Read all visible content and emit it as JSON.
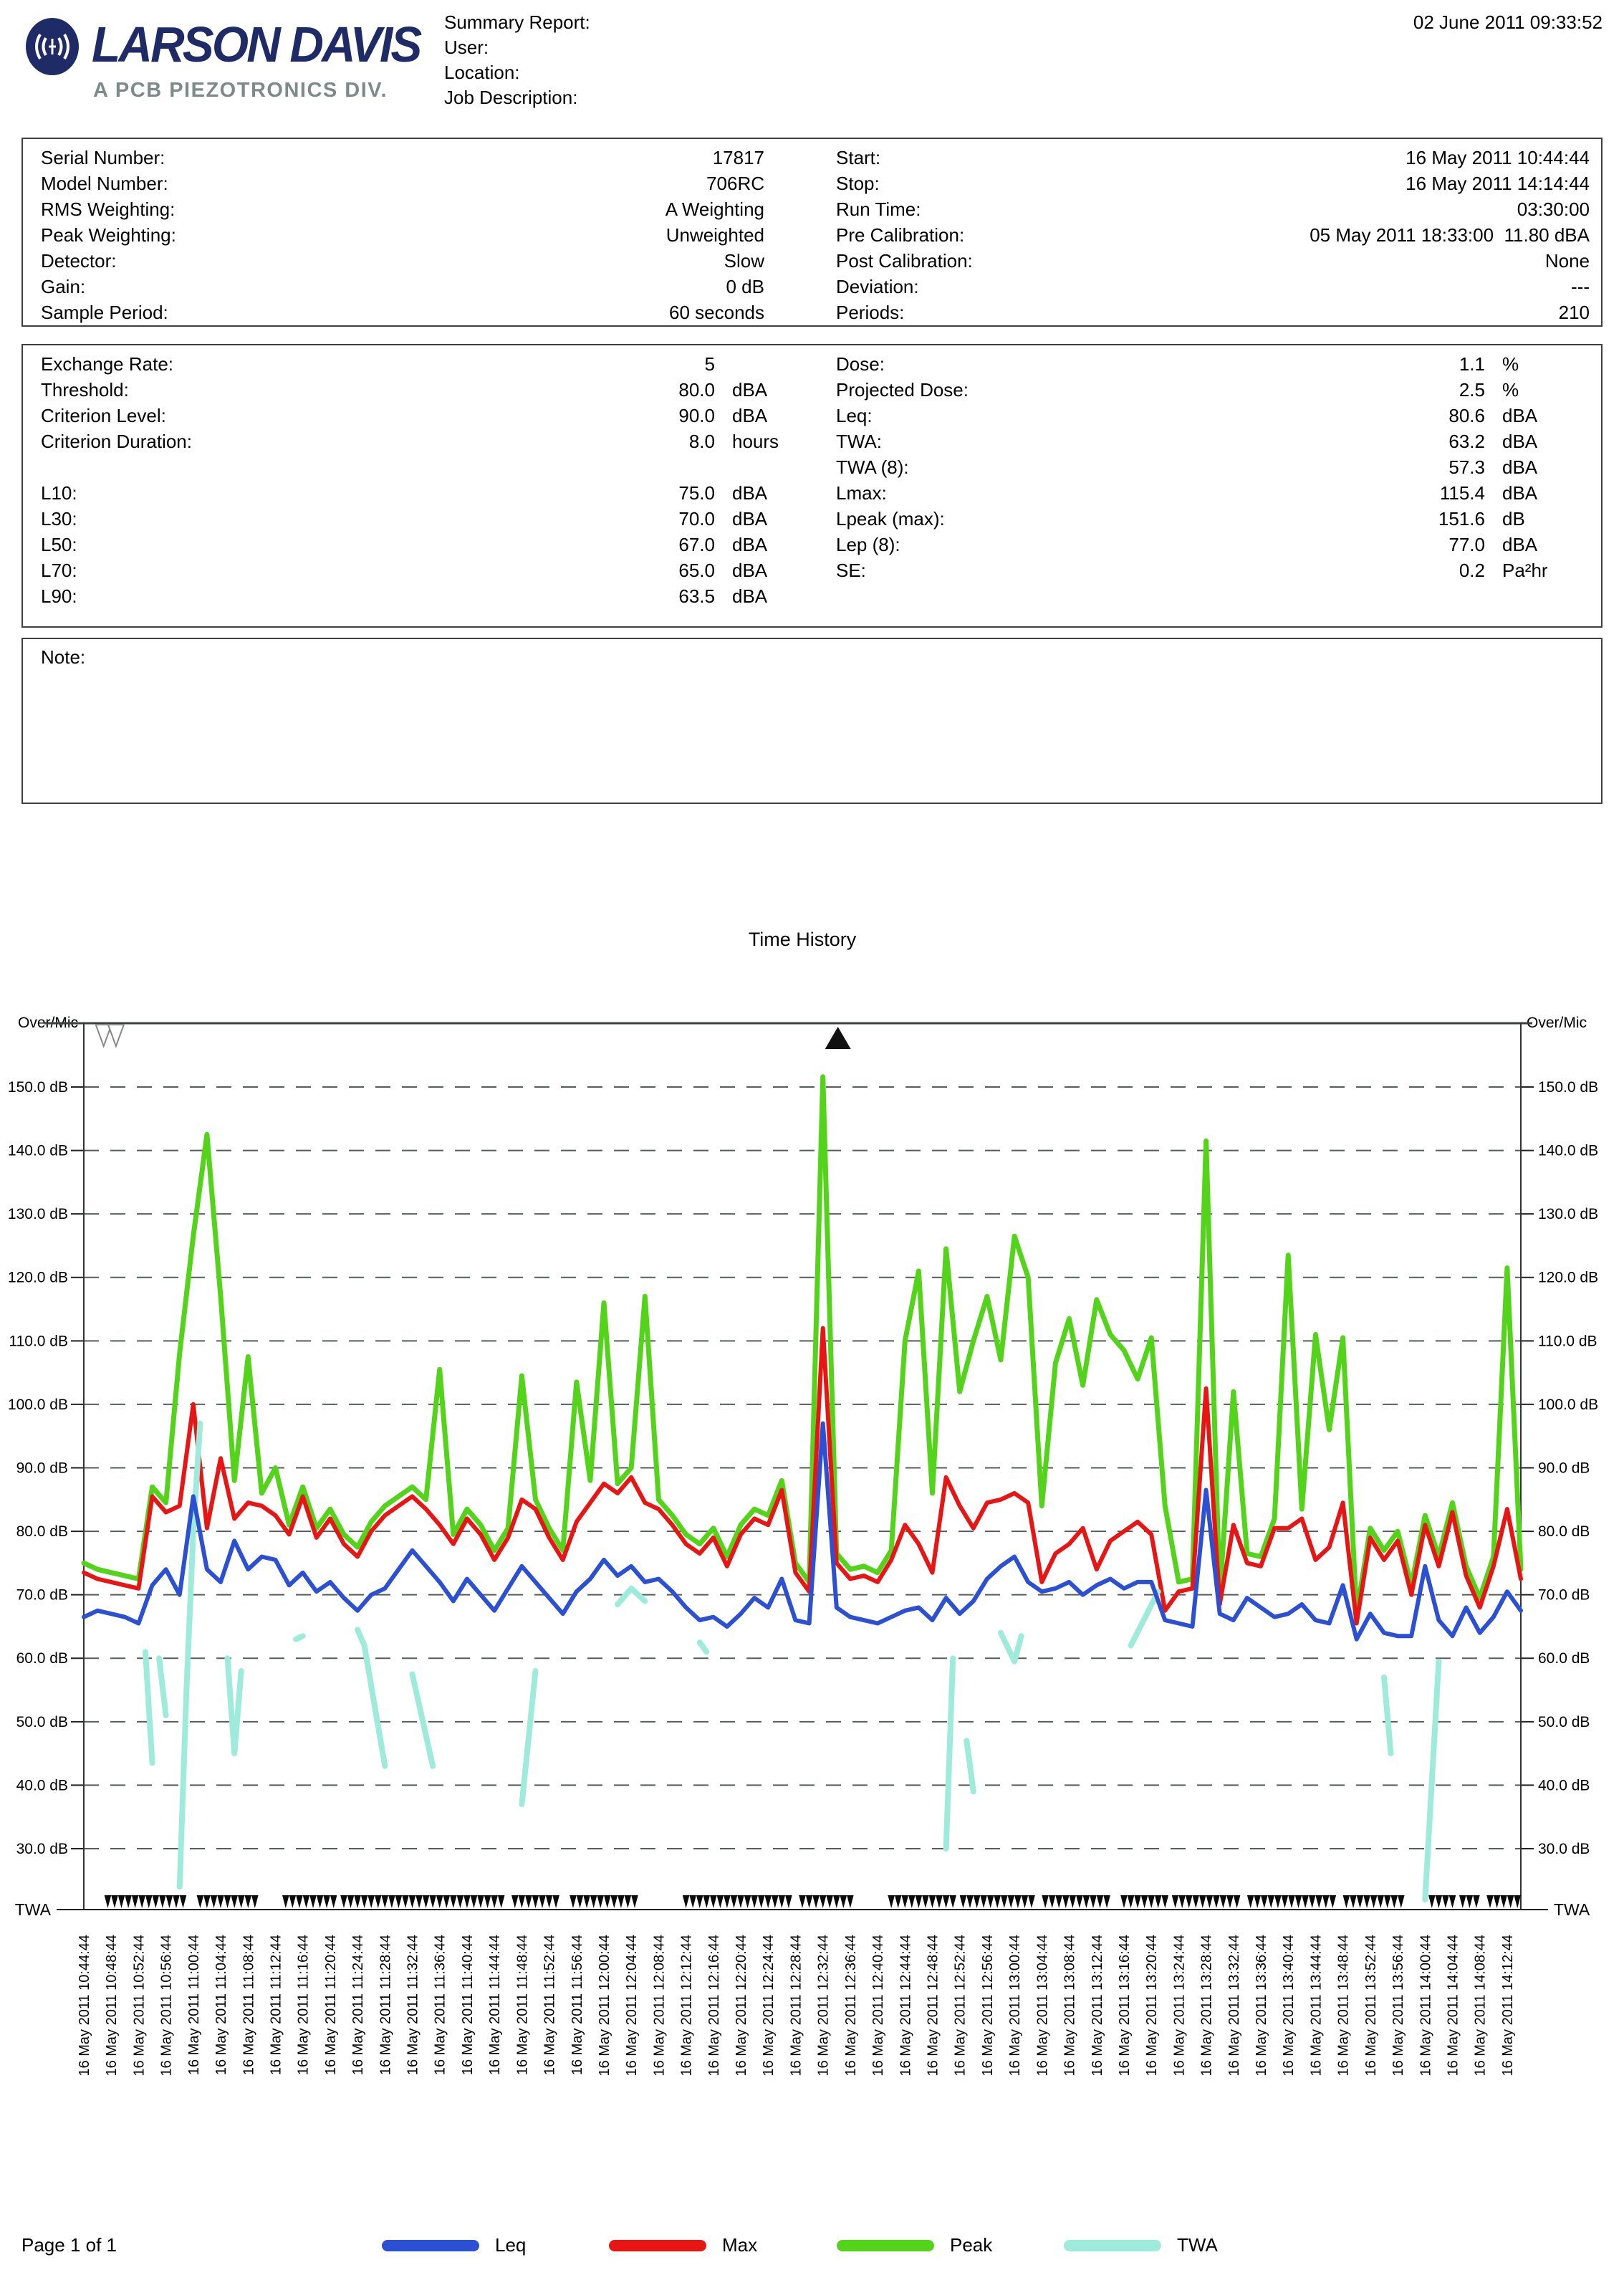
{
  "header": {
    "logo": {
      "name": "LARSON DAVIS",
      "tagline": "A PCB PIEZOTRONICS DIV."
    },
    "fields": {
      "summary": "Summary Report:",
      "user": "User:",
      "location": "Location:",
      "job": "Job Description:"
    },
    "datetime": "02 June 2011 09:33:52"
  },
  "info_table": {
    "left": [
      {
        "label": "Serial Number:",
        "value": "17817"
      },
      {
        "label": "Model Number:",
        "value": "706RC"
      },
      {
        "label": "RMS Weighting:",
        "value": "A Weighting"
      },
      {
        "label": "Peak Weighting:",
        "value": "Unweighted"
      },
      {
        "label": "Detector:",
        "value": "Slow"
      },
      {
        "label": "Gain:",
        "value": "0 dB"
      },
      {
        "label": "Sample Period:",
        "value": "60 seconds"
      }
    ],
    "right": [
      {
        "label": "Start:",
        "value": "16 May 2011 10:44:44"
      },
      {
        "label": "Stop:",
        "value": "16 May 2011 14:14:44"
      },
      {
        "label": "Run Time:",
        "value": "03:30:00"
      },
      {
        "label": "Pre Calibration:",
        "value": "05 May 2011 18:33:00  11.80 dBA"
      },
      {
        "label": "Post Calibration:",
        "value": "None"
      },
      {
        "label": "Deviation:",
        "value": "---"
      },
      {
        "label": "Periods:",
        "value": "210"
      }
    ]
  },
  "metrics_table": {
    "left": [
      {
        "label": "Exchange Rate:",
        "value": "5",
        "unit": ""
      },
      {
        "label": "Threshold:",
        "value": "80.0",
        "unit": "dBA"
      },
      {
        "label": "Criterion Level:",
        "value": "90.0",
        "unit": "dBA"
      },
      {
        "label": "Criterion Duration:",
        "value": "8.0",
        "unit": "hours"
      },
      {
        "label": "",
        "value": "",
        "unit": ""
      },
      {
        "label": "L10:",
        "value": "75.0",
        "unit": "dBA"
      },
      {
        "label": "L30:",
        "value": "70.0",
        "unit": "dBA"
      },
      {
        "label": "L50:",
        "value": "67.0",
        "unit": "dBA"
      },
      {
        "label": "L70:",
        "value": "65.0",
        "unit": "dBA"
      },
      {
        "label": "L90:",
        "value": "63.5",
        "unit": "dBA"
      }
    ],
    "right": [
      {
        "label": "Dose:",
        "value": "1.1",
        "unit": "%"
      },
      {
        "label": "Projected Dose:",
        "value": "2.5",
        "unit": "%"
      },
      {
        "label": "Leq:",
        "value": "80.6",
        "unit": "dBA"
      },
      {
        "label": "TWA:",
        "value": "63.2",
        "unit": "dBA"
      },
      {
        "label": "TWA (8):",
        "value": "57.3",
        "unit": "dBA"
      },
      {
        "label": "Lmax:",
        "value": "115.4",
        "unit": "dBA"
      },
      {
        "label": "Lpeak (max):",
        "value": "151.6",
        "unit": "dB"
      },
      {
        "label": "Lep (8):",
        "value": "77.0",
        "unit": "dBA"
      },
      {
        "label": "SE:",
        "value": "0.2",
        "unit": "Pa²hr"
      }
    ]
  },
  "note": {
    "label": "Note:"
  },
  "chart_data": {
    "type": "line",
    "title": "Time History",
    "overmic_label": "Over/Mic",
    "twa_axis_label": "TWA",
    "grid": true,
    "ylim_db": [
      30,
      150
    ],
    "y_tick_labels": [
      "150.0 dB",
      "140.0 dB",
      "130.0 dB",
      "120.0 dB",
      "110.0 dB",
      "100.0 dB",
      "90.0 dB",
      "80.0 dB",
      "70.0 dB",
      "60.0 dB",
      "50.0 dB",
      "40.0 dB",
      "30.0 dB"
    ],
    "x_minutes_total": 210,
    "sample_step_minutes": 2,
    "x_labels": [
      "16 May 2011 10:44:44",
      "16 May 2011 10:48:44",
      "16 May 2011 10:52:44",
      "16 May 2011 10:56:44",
      "16 May 2011 11:00:44",
      "16 May 2011 11:04:44",
      "16 May 2011 11:08:44",
      "16 May 2011 11:12:44",
      "16 May 2011 11:16:44",
      "16 May 2011 11:20:44",
      "16 May 2011 11:24:44",
      "16 May 2011 11:28:44",
      "16 May 2011 11:32:44",
      "16 May 2011 11:36:44",
      "16 May 2011 11:40:44",
      "16 May 2011 11:44:44",
      "16 May 2011 11:48:44",
      "16 May 2011 11:52:44",
      "16 May 2011 11:56:44",
      "16 May 2011 12:00:44",
      "16 May 2011 12:04:44",
      "16 May 2011 12:08:44",
      "16 May 2011 12:12:44",
      "16 May 2011 12:16:44",
      "16 May 2011 12:20:44",
      "16 May 2011 12:24:44",
      "16 May 2011 12:28:44",
      "16 May 2011 12:32:44",
      "16 May 2011 12:36:44",
      "16 May 2011 12:40:44",
      "16 May 2011 12:44:44",
      "16 May 2011 12:48:44",
      "16 May 2011 12:52:44",
      "16 May 2011 12:56:44",
      "16 May 2011 13:00:44",
      "16 May 2011 13:04:44",
      "16 May 2011 13:08:44",
      "16 May 2011 13:12:44",
      "16 May 2011 13:16:44",
      "16 May 2011 13:20:44",
      "16 May 2011 13:24:44",
      "16 May 2011 13:28:44",
      "16 May 2011 13:32:44",
      "16 May 2011 13:36:44",
      "16 May 2011 13:40:44",
      "16 May 2011 13:44:44",
      "16 May 2011 13:48:44",
      "16 May 2011 13:52:44",
      "16 May 2011 13:56:44",
      "16 May 2011 14:00:44",
      "16 May 2011 14:04:44",
      "16 May 2011 14:08:44",
      "16 May 2011 14:12:44"
    ],
    "series": [
      {
        "name": "Leq",
        "color": "#2c50d4",
        "width": 6,
        "values": [
          66.5,
          67.5,
          67,
          66.5,
          65.5,
          71.5,
          74,
          70,
          85.5,
          74,
          72,
          78.5,
          74,
          76,
          75.5,
          71.5,
          73.5,
          70.5,
          72,
          69.5,
          67.5,
          70,
          71,
          74,
          77,
          74.5,
          72,
          69,
          72.5,
          70,
          67.5,
          71,
          74.5,
          72,
          69.5,
          67,
          70.5,
          72.5,
          75.5,
          73,
          74.5,
          72,
          72.5,
          70.5,
          68,
          66,
          66.5,
          65,
          67,
          69.5,
          68,
          72.5,
          66,
          65.5,
          97,
          68,
          66.5,
          66,
          65.5,
          66.5,
          67.5,
          68,
          66,
          69.5,
          67,
          69,
          72.5,
          74.5,
          76,
          72,
          70.5,
          71,
          72,
          70,
          71.5,
          72.5,
          71,
          72,
          72,
          66,
          65.5,
          65,
          86.5,
          67,
          66,
          69.5,
          68,
          66.5,
          67,
          68.5,
          66,
          65.5,
          71.5,
          63,
          67,
          64,
          63.5,
          63.5,
          74.5,
          66,
          63.5,
          68,
          64,
          66.5,
          70.5,
          67.5
        ]
      },
      {
        "name": "Max",
        "color": "#e81515",
        "width": 6,
        "values": [
          73.5,
          72.5,
          72,
          71.5,
          71,
          85.5,
          83,
          84,
          100,
          80.5,
          91.5,
          82,
          84.5,
          84,
          82.5,
          79.5,
          85.5,
          79,
          82,
          78,
          76,
          80,
          82.5,
          84,
          85.5,
          83.5,
          81,
          78,
          82,
          79.5,
          75.5,
          79,
          85,
          83.5,
          79,
          75.5,
          81.5,
          84.5,
          87.5,
          86,
          88.5,
          84.5,
          83.5,
          81,
          78,
          76.5,
          79,
          74.5,
          79.5,
          82,
          81,
          86.5,
          73.5,
          70.5,
          112,
          75,
          72.5,
          73,
          72,
          75.5,
          81,
          78,
          73.5,
          88.5,
          84,
          80.5,
          84.5,
          85,
          86,
          84.5,
          72,
          76.5,
          78,
          80.5,
          74,
          78.5,
          80,
          81.5,
          79.5,
          67.5,
          70.5,
          71,
          102.5,
          68.5,
          81,
          75,
          74.5,
          80.5,
          80.5,
          82,
          75.5,
          77.5,
          84.5,
          65.5,
          79,
          75.5,
          78.5,
          70,
          81,
          74.5,
          83,
          73,
          68,
          74.5,
          83.5,
          72.5
        ]
      },
      {
        "name": "Peak",
        "color": "#53d31a",
        "width": 7,
        "values": [
          75,
          74,
          73.5,
          73,
          72.5,
          87,
          84.5,
          108,
          126.5,
          142.5,
          117,
          88,
          107.5,
          86,
          90,
          81,
          87,
          80.5,
          83.5,
          79.5,
          77.5,
          81.5,
          84,
          85.5,
          87,
          85,
          105.5,
          79.5,
          83.5,
          81,
          77,
          80.5,
          104.5,
          85,
          80.5,
          77,
          103.5,
          88,
          116,
          87.5,
          90,
          117,
          85,
          82.5,
          79.5,
          78,
          80.5,
          76,
          81,
          83.5,
          82.5,
          88,
          75,
          72,
          151.6,
          76.5,
          74,
          74.5,
          73.5,
          77,
          110,
          121,
          86,
          124.5,
          102,
          110,
          117,
          107,
          126.5,
          120,
          84,
          106.5,
          113.5,
          103,
          116.5,
          111,
          108.5,
          104,
          110.5,
          84,
          72,
          72.5,
          141.5,
          70,
          102,
          76.5,
          76,
          82,
          123.5,
          83.5,
          111,
          96,
          110.5,
          67,
          80.5,
          77,
          80,
          71.5,
          82.5,
          76,
          84.5,
          74.5,
          69.5,
          76,
          121.5,
          74
        ]
      },
      {
        "name": "TWA",
        "color": "#9febdb",
        "width": 8,
        "segments": [
          [
            [
              9,
              61
            ],
            [
              10,
              43.5
            ]
          ],
          [
            [
              11,
              60
            ],
            [
              12,
              51
            ]
          ],
          [
            [
              14,
              24
            ],
            [
              15,
              55
            ],
            [
              16,
              80
            ],
            [
              17,
              97
            ]
          ],
          [
            [
              21,
              60
            ],
            [
              22,
              45
            ],
            [
              23,
              58
            ]
          ],
          [
            [
              31,
              63
            ],
            [
              32,
              63.5
            ]
          ],
          [
            [
              40,
              64.5
            ],
            [
              41,
              62
            ],
            [
              44,
              43
            ]
          ],
          [
            [
              48,
              57.5
            ],
            [
              51,
              43
            ]
          ],
          [
            [
              64,
              37
            ],
            [
              66,
              58
            ]
          ],
          [
            [
              78,
              68.5
            ],
            [
              80,
              71
            ],
            [
              82,
              69
            ]
          ],
          [
            [
              90,
              62.5
            ],
            [
              91,
              61
            ]
          ],
          [
            [
              126,
              30
            ],
            [
              127,
              60
            ]
          ],
          [
            [
              129,
              47
            ],
            [
              130,
              39
            ]
          ],
          [
            [
              134,
              64
            ],
            [
              136,
              59.5
            ],
            [
              137,
              63.5
            ]
          ],
          [
            [
              153,
              62
            ],
            [
              157,
              70.5
            ]
          ],
          [
            [
              190,
              57
            ],
            [
              191,
              45
            ]
          ],
          [
            [
              196,
              22
            ],
            [
              198,
              59.5
            ]
          ]
        ]
      }
    ],
    "markers": {
      "open_down_triangle_minutes": [
        2.9,
        4.7
      ],
      "solid_up_triangle_minutes": [
        110.2
      ],
      "bottom_triangle_ranges": [
        [
          3,
          15
        ],
        [
          16.5,
          25.5
        ],
        [
          29,
          37
        ],
        [
          37.5,
          61.5
        ],
        [
          62.5,
          69.5
        ],
        [
          71,
          81
        ],
        [
          87.5,
          103
        ],
        [
          104.5,
          112
        ],
        [
          117.5,
          127
        ],
        [
          128,
          139
        ],
        [
          140,
          150
        ],
        [
          151.5,
          158
        ],
        [
          159,
          169
        ],
        [
          170,
          183
        ],
        [
          184,
          193
        ],
        [
          196.5,
          200
        ],
        [
          201,
          204
        ],
        [
          205,
          209.5
        ]
      ]
    },
    "legend": [
      {
        "label": "Leq",
        "color": "#2c50d4"
      },
      {
        "label": "Max",
        "color": "#e81515"
      },
      {
        "label": "Peak",
        "color": "#53d31a"
      },
      {
        "label": "TWA",
        "color": "#9febdb"
      }
    ]
  },
  "footer": {
    "page": "Page 1 of 1"
  }
}
